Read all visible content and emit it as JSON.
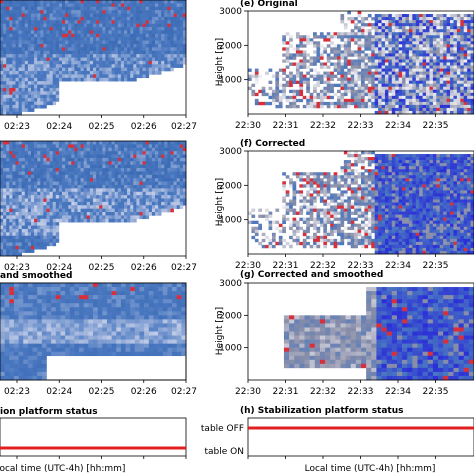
{
  "left_column": {
    "x_ticks": [
      "02:23",
      "02:24",
      "02:25",
      "02:26",
      "02:27"
    ],
    "x_range": [
      "02:22:30",
      "02:27"
    ],
    "panels": [
      {
        "title": ""
      },
      {
        "title": ""
      },
      {
        "title": "and smoothed"
      },
      {
        "title": "ion platform status"
      }
    ],
    "xlabel": "Local time (UTC-4h) [hh:mm]"
  },
  "right_column": {
    "x_ticks": [
      "22:30",
      "22:31",
      "22:32",
      "22:33",
      "22:34",
      "22:35"
    ],
    "y_ticks": [
      "1000",
      "2000",
      "3000"
    ],
    "ylabel": "Height [m]",
    "xlabel": "Local time (UTC-4h) [hh:mm]",
    "panels": [
      {
        "title": "(e) Original"
      },
      {
        "title": "(f) Corrected"
      },
      {
        "title": "(g) Corrected and smoothed"
      },
      {
        "title": "(h) Stabilization platform status"
      }
    ],
    "status_labels": [
      "table OFF",
      "table ON"
    ]
  },
  "colors": {
    "platform_status_line": "#e02020",
    "high_velocity": "#d8303a",
    "mid_velocity": "#4a78c0",
    "low_velocity": "#dcdff0",
    "strong_blue": "#2b2fd8"
  },
  "chart_data": [
    {
      "type": "heatmap",
      "panel": "a",
      "x_ticks": [
        "02:23",
        "02:24",
        "02:25",
        "02:26",
        "02:27"
      ]
    },
    {
      "type": "heatmap",
      "panel": "b",
      "x_ticks": [
        "02:23",
        "02:24",
        "02:25",
        "02:26",
        "02:27"
      ]
    },
    {
      "type": "heatmap",
      "panel": "c",
      "title": "and smoothed",
      "x_ticks": [
        "02:23",
        "02:24",
        "02:25",
        "02:26",
        "02:27"
      ]
    },
    {
      "type": "line",
      "panel": "d",
      "title": "ion platform status",
      "x_ticks": [
        "02:23",
        "02:24",
        "02:25",
        "02:26",
        "02:27"
      ],
      "status": "table OFF"
    },
    {
      "type": "heatmap",
      "panel": "e",
      "title": "(e) Original",
      "ylabel": "Height [m]",
      "y_ticks": [
        1000,
        2000,
        3000
      ],
      "ylim": [
        0,
        3000
      ],
      "x_ticks": [
        "22:30",
        "22:31",
        "22:32",
        "22:33",
        "22:34",
        "22:35"
      ]
    },
    {
      "type": "heatmap",
      "panel": "f",
      "title": "(f) Corrected",
      "ylabel": "Height [m]",
      "y_ticks": [
        1000,
        2000,
        3000
      ],
      "ylim": [
        0,
        3000
      ],
      "x_ticks": [
        "22:30",
        "22:31",
        "22:32",
        "22:33",
        "22:34",
        "22:35"
      ]
    },
    {
      "type": "heatmap",
      "panel": "g",
      "title": "(g) Corrected and smoothed",
      "ylabel": "Height [m]",
      "y_ticks": [
        1000,
        2000,
        3000
      ],
      "ylim": [
        0,
        3000
      ],
      "x_ticks": [
        "22:30",
        "22:31",
        "22:32",
        "22:33",
        "22:34",
        "22:35"
      ]
    },
    {
      "type": "line",
      "panel": "h",
      "title": "(h) Stabilization platform status",
      "y_ticks": [
        "table OFF",
        "table ON"
      ],
      "x_ticks": [
        "22:30",
        "22:31",
        "22:32",
        "22:33",
        "22:34",
        "22:35"
      ],
      "status": "table OFF"
    }
  ]
}
